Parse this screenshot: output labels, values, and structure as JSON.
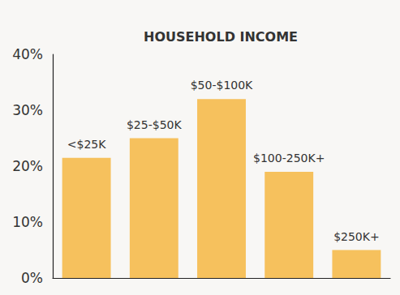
{
  "chart_data": {
    "type": "bar",
    "title": "HOUSEHOLD INCOME",
    "categories": [
      "<$25K",
      "$25-$50K",
      "$50-$100K",
      "$100-250K+",
      "$250K+"
    ],
    "values": [
      21.5,
      25,
      32,
      19,
      5
    ],
    "color": "#f6c15d",
    "ylim": [
      0,
      40
    ],
    "yticks": [
      {
        "value": 0,
        "label": "0%"
      },
      {
        "value": 10,
        "label": "10%"
      },
      {
        "value": 20,
        "label": "20%"
      },
      {
        "value": 30,
        "label": "30%"
      },
      {
        "value": 40,
        "label": "40%"
      }
    ],
    "grid": false,
    "tick_labels": "y"
  }
}
